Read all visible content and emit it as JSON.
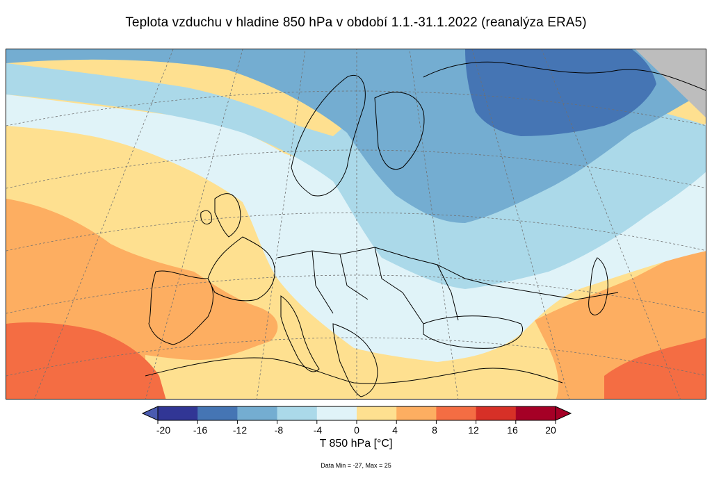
{
  "title": "Teplota vzduchu v hladine 850 hPa v období 1.1.-31.1.2022 (reanalýza ERA5)",
  "map": {
    "region": "Europe",
    "variable": "T 850 hPa",
    "projection_grid": "dashed graticule",
    "no_data_color": "#bdbdbd"
  },
  "colorbar": {
    "label": "T 850 hPa [°C]",
    "ticks": [
      "-20",
      "-16",
      "-12",
      "-8",
      "-4",
      "0",
      "4",
      "8",
      "12",
      "16",
      "20"
    ],
    "bins": [
      {
        "from": -20,
        "to": -16,
        "color": "#313695"
      },
      {
        "from": -16,
        "to": -12,
        "color": "#4575b4"
      },
      {
        "from": -12,
        "to": -8,
        "color": "#74add1"
      },
      {
        "from": -8,
        "to": -4,
        "color": "#abd9e9"
      },
      {
        "from": -4,
        "to": 0,
        "color": "#e0f3f8"
      },
      {
        "from": 0,
        "to": 4,
        "color": "#fee090"
      },
      {
        "from": 4,
        "to": 8,
        "color": "#fdae61"
      },
      {
        "from": 8,
        "to": 12,
        "color": "#f46d43"
      },
      {
        "from": 12,
        "to": 16,
        "color": "#d73027"
      },
      {
        "from": 16,
        "to": 20,
        "color": "#a50026"
      }
    ],
    "under_color": "#4a5bb0",
    "over_color": "#a50026"
  },
  "footnote": "Data Min = -27, Max = 25"
}
